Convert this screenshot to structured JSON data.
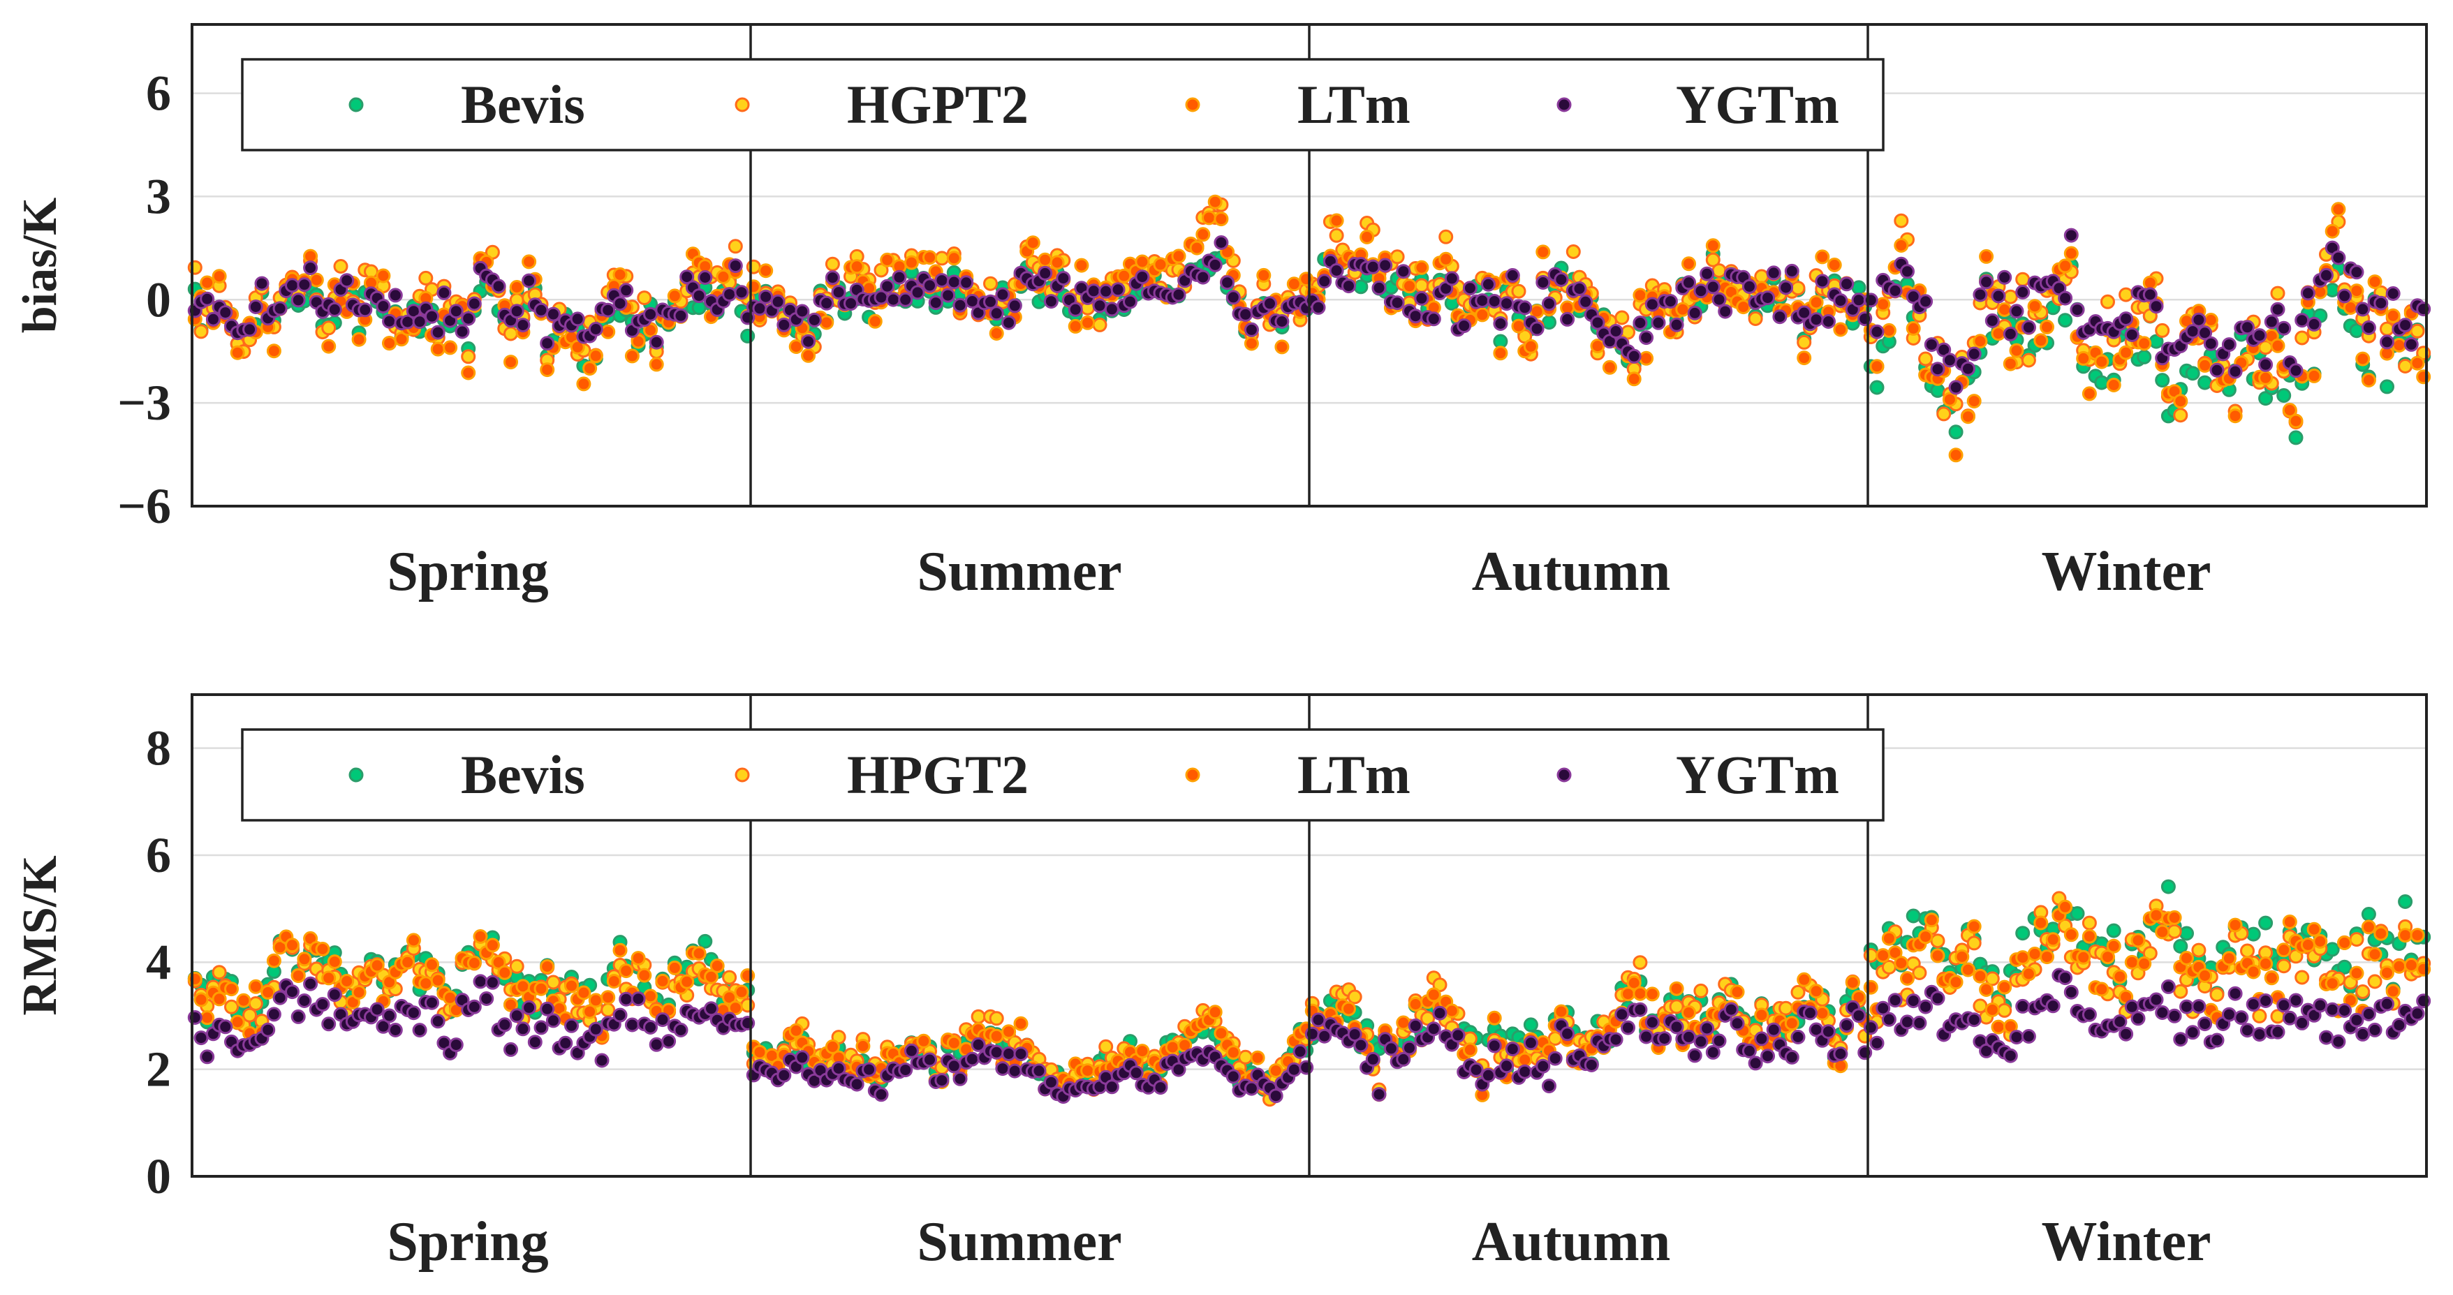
{
  "colors": {
    "bevis_fill": "#00c878",
    "bevis_edge": "#2a9d6a",
    "hgpt2_fill": "#ffd21a",
    "hgpt2_edge": "#ff6a1a",
    "ltm_fill": "#ff5a00",
    "ltm_edge": "#ffa000",
    "ygtm_fill": "#2a0a3a",
    "ygtm_edge": "#8a3a9a",
    "grid": "#dddddd",
    "axis": "#222222"
  },
  "chart_data": [
    {
      "type": "scatter",
      "ylabel": "bias/K",
      "xlabel": "",
      "ylim": [
        -6,
        8
      ],
      "yticks": [
        -6,
        -3,
        0,
        3,
        6
      ],
      "ytick_labels": [
        "−6",
        "−3",
        "0",
        "3",
        "6"
      ],
      "grid": true,
      "categories": [
        "Spring",
        "Summer",
        "Autumn",
        "Winter"
      ],
      "points_per_season": 92,
      "legend": {
        "placement": "upper-left",
        "entries": [
          "Bevis",
          "HGPT2",
          "LTm",
          "YGTm"
        ]
      },
      "series": [
        {
          "name": "Bevis",
          "seasonal_mean": [
            -0.4,
            0.0,
            -0.1,
            -1.1
          ],
          "seasonal_spread": [
            1.1,
            0.9,
            1.2,
            1.7
          ]
        },
        {
          "name": "HGPT2",
          "seasonal_mean": [
            -0.1,
            0.3,
            0.2,
            -0.5
          ],
          "seasonal_spread": [
            1.5,
            1.3,
            1.5,
            2.0
          ]
        },
        {
          "name": "LTm",
          "seasonal_mean": [
            -0.3,
            0.2,
            0.0,
            -0.7
          ],
          "seasonal_spread": [
            1.6,
            1.4,
            1.6,
            2.1
          ]
        },
        {
          "name": "YGTm",
          "seasonal_mean": [
            -0.2,
            0.0,
            -0.1,
            -0.2
          ],
          "seasonal_spread": [
            1.0,
            0.8,
            1.1,
            1.6
          ]
        }
      ]
    },
    {
      "type": "scatter",
      "ylabel": "RMS/K",
      "xlabel": "",
      "ylim": [
        0,
        9
      ],
      "yticks": [
        0,
        2,
        4,
        6,
        8
      ],
      "ytick_labels": [
        "0",
        "2",
        "4",
        "6",
        "8"
      ],
      "grid": true,
      "categories": [
        "Spring",
        "Summer",
        "Autumn",
        "Winter"
      ],
      "points_per_season": 92,
      "legend": {
        "placement": "upper-left",
        "entries": [
          "Bevis",
          "HPGT2",
          "LTm",
          "YGTm"
        ]
      },
      "series": [
        {
          "name": "Bevis",
          "seasonal_mean": [
            3.6,
            2.2,
            2.8,
            4.3
          ],
          "seasonal_spread": [
            0.7,
            0.5,
            0.7,
            0.9
          ]
        },
        {
          "name": "HPGT2",
          "seasonal_mean": [
            3.5,
            2.2,
            2.8,
            4.0
          ],
          "seasonal_spread": [
            0.8,
            0.6,
            0.8,
            1.0
          ]
        },
        {
          "name": "LTm",
          "seasonal_mean": [
            3.5,
            2.2,
            2.7,
            4.1
          ],
          "seasonal_spread": [
            0.8,
            0.6,
            0.8,
            1.0
          ]
        },
        {
          "name": "YGTm",
          "seasonal_mean": [
            2.8,
            1.9,
            2.4,
            3.0
          ],
          "seasonal_spread": [
            0.6,
            0.4,
            0.6,
            0.6
          ]
        }
      ]
    }
  ]
}
